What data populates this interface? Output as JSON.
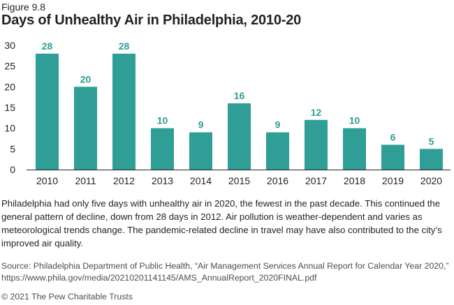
{
  "figure_label": "Figure 9.8",
  "caption": "Philadelphia had only five days with unhealthy air in 2020, the fewest in the past decade. This continued the general pattern of decline, down from 28 days in 2012. Air pollution is weather-dependent and varies as meteorological trends change. The pandemic-related decline in travel may have also contributed to the city’s improved air quality.",
  "source": "Source: Philadelphia Department of Public Health, “Air Management Services Annual Report for Calendar Year 2020,” https://www.phila.gov/media/20210201141145/AMS_AnnualReport_2020FINAL.pdf",
  "copyright": "© 2021 The Pew Charitable Trusts",
  "colors": {
    "bar": "#2e9e96",
    "label": "#2e9e96",
    "axis": "#231f20"
  },
  "chart_data": {
    "type": "bar",
    "title": "Days of Unhealthy Air in Philadelphia, 2010-20",
    "categories": [
      "2010",
      "2011",
      "2012",
      "2013",
      "2014",
      "2015",
      "2016",
      "2017",
      "2018",
      "2019",
      "2020"
    ],
    "values": [
      28,
      20,
      28,
      10,
      9,
      16,
      9,
      12,
      10,
      6,
      5
    ],
    "yticks": [
      "0",
      "5",
      "10",
      "15",
      "20",
      "25",
      "30"
    ],
    "ylim": [
      0,
      30
    ],
    "xlabel": "",
    "ylabel": "",
    "grid": false,
    "data_labels": true
  }
}
